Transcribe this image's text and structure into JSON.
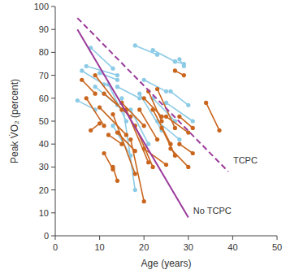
{
  "chart_data": {
    "type": "line",
    "x_label": "Age (years)",
    "y_label": "Peak V̇O₂ (percent)",
    "xlim": [
      0,
      50
    ],
    "xticks": [
      0,
      10,
      20,
      30,
      40,
      50
    ],
    "ylim": [
      0,
      100
    ],
    "yticks": [
      0,
      10,
      20,
      30,
      40,
      50,
      60,
      70,
      80,
      90,
      100
    ],
    "grid": false,
    "annotations": [
      "TCPC",
      "No TCPC"
    ],
    "series": [
      {
        "color": "#9b3a9b",
        "line_style": "dashed",
        "x": [
          5,
          39
        ],
        "values": [
          95,
          28
        ]
      },
      {
        "color": "#9b3a9b",
        "line_style": "solid",
        "x": [
          5,
          30
        ],
        "values": [
          90,
          8
        ]
      },
      {
        "color": "#8ccbe6",
        "marker": "circle",
        "x": [
          6,
          11
        ],
        "values": [
          72,
          66
        ]
      },
      {
        "color": "#8ccbe6",
        "marker": "circle",
        "x": [
          7,
          14
        ],
        "values": [
          74,
          70
        ]
      },
      {
        "color": "#8ccbe6",
        "marker": "circle",
        "x": [
          8,
          13
        ],
        "values": [
          82,
          73
        ]
      },
      {
        "color": "#8ccbe6",
        "marker": "circle",
        "x": [
          10,
          14
        ],
        "values": [
          71,
          68
        ]
      },
      {
        "color": "#8ccbe6",
        "marker": "circle",
        "x": [
          5,
          9
        ],
        "values": [
          59,
          55
        ]
      },
      {
        "color": "#8ccbe6",
        "marker": "circle",
        "x": [
          14,
          19
        ],
        "values": [
          65,
          60
        ]
      },
      {
        "color": "#8ccbe6",
        "marker": "circle",
        "x": [
          18,
          23
        ],
        "values": [
          83,
          79
        ]
      },
      {
        "color": "#8ccbe6",
        "marker": "circle",
        "x": [
          22,
          27
        ],
        "values": [
          81,
          76
        ]
      },
      {
        "color": "#8ccbe6",
        "marker": "circle",
        "x": [
          27,
          29
        ],
        "values": [
          76,
          75
        ]
      },
      {
        "color": "#8ccbe6",
        "marker": "circle",
        "x": [
          28,
          29
        ],
        "values": [
          77,
          74
        ]
      },
      {
        "color": "#8ccbe6",
        "marker": "circle",
        "x": [
          20,
          25
        ],
        "values": [
          68,
          63
        ]
      },
      {
        "color": "#8ccbe6",
        "marker": "circle",
        "x": [
          15,
          18
        ],
        "values": [
          60,
          20
        ]
      },
      {
        "color": "#8ccbe6",
        "marker": "circle",
        "x": [
          17,
          21
        ],
        "values": [
          55,
          40
        ]
      },
      {
        "color": "#8ccbe6",
        "marker": "circle",
        "x": [
          22,
          27
        ],
        "values": [
          60,
          50
        ]
      },
      {
        "color": "#8ccbe6",
        "marker": "circle",
        "x": [
          26,
          30
        ],
        "values": [
          63,
          57
        ]
      },
      {
        "color": "#8ccbe6",
        "marker": "circle",
        "x": [
          23,
          28
        ],
        "values": [
          50,
          42
        ]
      },
      {
        "color": "#8ccbe6",
        "marker": "circle",
        "x": [
          13,
          17
        ],
        "values": [
          48,
          35
        ]
      },
      {
        "color": "#8ccbe6",
        "marker": "circle",
        "x": [
          19,
          24
        ],
        "values": [
          62,
          46
        ]
      },
      {
        "color": "#8ccbe6",
        "marker": "circle",
        "x": [
          25,
          31
        ],
        "values": [
          58,
          50
        ]
      },
      {
        "color": "#8ccbe6",
        "marker": "circle",
        "x": [
          12,
          16
        ],
        "values": [
          66,
          50
        ]
      },
      {
        "color": "#8ccbe6",
        "marker": "circle",
        "x": [
          9,
          14
        ],
        "values": [
          65,
          57
        ]
      },
      {
        "color": "#c9651c",
        "marker": "circle",
        "x": [
          6,
          9
        ],
        "values": [
          68,
          62
        ]
      },
      {
        "color": "#c9651c",
        "marker": "circle",
        "x": [
          8,
          10
        ],
        "values": [
          46,
          49
        ]
      },
      {
        "color": "#c9651c",
        "marker": "circle",
        "x": [
          9,
          15
        ],
        "values": [
          70,
          55
        ]
      },
      {
        "color": "#c9651c",
        "marker": "circle",
        "x": [
          11,
          13
        ],
        "values": [
          36,
          29
        ]
      },
      {
        "color": "#c9651c",
        "marker": "circle",
        "x": [
          12,
          15
        ],
        "values": [
          44,
          40
        ]
      },
      {
        "color": "#c9651c",
        "marker": "circle",
        "x": [
          13,
          14
        ],
        "values": [
          30,
          24
        ]
      },
      {
        "color": "#c9651c",
        "marker": "circle",
        "x": [
          10,
          16
        ],
        "values": [
          56,
          44
        ]
      },
      {
        "color": "#c9651c",
        "marker": "circle",
        "x": [
          14,
          18
        ],
        "values": [
          45,
          37
        ]
      },
      {
        "color": "#c9651c",
        "marker": "circle",
        "x": [
          15,
          20
        ],
        "values": [
          58,
          48
        ]
      },
      {
        "color": "#c9651c",
        "marker": "circle",
        "x": [
          17,
          20
        ],
        "values": [
          42,
          15
        ]
      },
      {
        "color": "#c9651c",
        "marker": "circle",
        "x": [
          18,
          22
        ],
        "values": [
          48,
          30
        ]
      },
      {
        "color": "#c9651c",
        "marker": "circle",
        "x": [
          20,
          24
        ],
        "values": [
          60,
          52
        ]
      },
      {
        "color": "#c9651c",
        "marker": "circle",
        "x": [
          21,
          24
        ],
        "values": [
          63,
          50
        ]
      },
      {
        "color": "#c9651c",
        "marker": "circle",
        "x": [
          22,
          26
        ],
        "values": [
          55,
          40
        ]
      },
      {
        "color": "#c9651c",
        "marker": "circle",
        "x": [
          24,
          27
        ],
        "values": [
          47,
          35
        ]
      },
      {
        "color": "#c9651c",
        "marker": "circle",
        "x": [
          25,
          30
        ],
        "values": [
          52,
          45
        ]
      },
      {
        "color": "#c9651c",
        "marker": "circle",
        "x": [
          26,
          30
        ],
        "values": [
          38,
          30
        ]
      },
      {
        "color": "#c9651c",
        "marker": "circle",
        "x": [
          27,
          29
        ],
        "values": [
          72,
          70
        ]
      },
      {
        "color": "#c9651c",
        "marker": "circle",
        "x": [
          28,
          31
        ],
        "values": [
          52,
          47
        ]
      },
      {
        "color": "#c9651c",
        "marker": "circle",
        "x": [
          34,
          37
        ],
        "values": [
          58,
          46
        ]
      },
      {
        "color": "#c9651c",
        "marker": "circle",
        "x": [
          23,
          27
        ],
        "values": [
          64,
          47
        ]
      },
      {
        "color": "#c9651c",
        "marker": "circle",
        "x": [
          19,
          23
        ],
        "values": [
          55,
          42
        ]
      },
      {
        "color": "#c9651c",
        "marker": "circle",
        "x": [
          16,
          21
        ],
        "values": [
          55,
          32
        ]
      },
      {
        "color": "#c9651c",
        "marker": "circle",
        "x": [
          11,
          17
        ],
        "values": [
          62,
          52
        ]
      },
      {
        "color": "#c9651c",
        "marker": "circle",
        "x": [
          7,
          11
        ],
        "values": [
          60,
          48
        ]
      },
      {
        "color": "#c9651c",
        "marker": "circle",
        "x": [
          13,
          18
        ],
        "values": [
          53,
          27
        ]
      },
      {
        "color": "#c9651c",
        "marker": "circle",
        "x": [
          20,
          25
        ],
        "values": [
          38,
          31
        ]
      },
      {
        "color": "#c9651c",
        "marker": "circle",
        "x": [
          28,
          31
        ],
        "values": [
          40,
          36
        ]
      }
    ]
  }
}
